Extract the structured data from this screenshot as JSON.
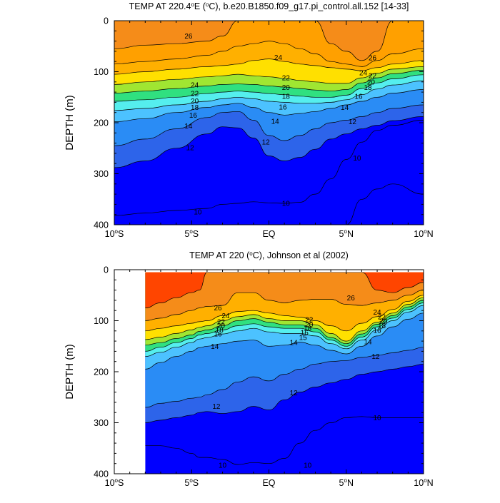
{
  "chart_data": [
    {
      "type": "heatmap",
      "title": "TEMP AT 220.4°E (°C), b.e20.B1850.f09_g17.pi_control.all.152 [14-33]",
      "xlabel": "",
      "ylabel": "DEPTH (m)",
      "xlim": [
        -10,
        10
      ],
      "ylim": [
        400,
        0
      ],
      "x_ticks": [
        -10,
        -5,
        0,
        5,
        10
      ],
      "x_tick_labels": [
        "10°S",
        "5°S",
        "EQ",
        "5°N",
        "10°N"
      ],
      "y_ticks": [
        0,
        100,
        200,
        300,
        400
      ],
      "y_tick_labels": [
        "0",
        "100",
        "200",
        "300",
        "400"
      ],
      "data_lon_range": [
        -10,
        10
      ],
      "contour_interval": 1,
      "contour_label_values": [
        {
          "text": "26",
          "x": -5.2,
          "y": 30
        },
        {
          "text": "26",
          "x": 6.7,
          "y": 73
        },
        {
          "text": "24",
          "x": 0.6,
          "y": 72
        },
        {
          "text": "24",
          "x": 6.1,
          "y": 102
        },
        {
          "text": "24",
          "x": -4.8,
          "y": 126
        },
        {
          "text": "22",
          "x": 1.1,
          "y": 112
        },
        {
          "text": "22",
          "x": 6.7,
          "y": 108
        },
        {
          "text": "22",
          "x": -4.8,
          "y": 143
        },
        {
          "text": "20",
          "x": 1.1,
          "y": 131
        },
        {
          "text": "20",
          "x": 6.6,
          "y": 120
        },
        {
          "text": "20",
          "x": -4.8,
          "y": 157
        },
        {
          "text": "18",
          "x": 1.1,
          "y": 148
        },
        {
          "text": "18",
          "x": 6.4,
          "y": 131
        },
        {
          "text": "18",
          "x": -4.8,
          "y": 170
        },
        {
          "text": "16",
          "x": 0.9,
          "y": 169
        },
        {
          "text": "16",
          "x": 5.8,
          "y": 148
        },
        {
          "text": "16",
          "x": -4.9,
          "y": 185
        },
        {
          "text": "14",
          "x": 0.4,
          "y": 197
        },
        {
          "text": "14",
          "x": 4.9,
          "y": 170
        },
        {
          "text": "14",
          "x": -5.2,
          "y": 206
        },
        {
          "text": "12",
          "x": -0.2,
          "y": 238
        },
        {
          "text": "12",
          "x": 5.4,
          "y": 198
        },
        {
          "text": "12",
          "x": -5.1,
          "y": 249
        },
        {
          "text": "10",
          "x": -4.6,
          "y": 375
        },
        {
          "text": "10",
          "x": 1.1,
          "y": 358
        },
        {
          "text": "10",
          "x": 5.7,
          "y": 269
        }
      ],
      "field_description": {
        "levels": [
          10,
          11,
          12,
          13,
          14,
          15,
          16,
          17,
          18,
          19,
          20,
          21,
          22,
          23,
          24,
          25,
          26,
          27
        ],
        "isotherm_depths_m": {
          "x": [
            -10,
            -8,
            -6,
            -4,
            -3,
            -2,
            -1,
            0,
            1,
            2,
            3,
            4,
            5,
            6,
            7,
            8,
            10
          ],
          "t27": [
            null,
            null,
            null,
            null,
            null,
            null,
            null,
            null,
            null,
            null,
            null,
            null,
            0,
            0,
            0,
            0,
            0
          ],
          "t26": [
            55,
            48,
            45,
            40,
            30,
            0,
            0,
            0,
            0,
            0,
            0,
            45,
            60,
            78,
            60,
            0,
            0
          ],
          "t25": [
            85,
            80,
            75,
            68,
            60,
            50,
            45,
            40,
            45,
            55,
            65,
            80,
            85,
            90,
            78,
            65,
            55
          ],
          "t24": [
            105,
            100,
            95,
            90,
            88,
            85,
            78,
            75,
            80,
            85,
            88,
            92,
            95,
            98,
            92,
            85,
            78
          ],
          "t22": [
            125,
            120,
            115,
            110,
            108,
            105,
            108,
            110,
            113,
            117,
            120,
            123,
            123,
            112,
            103,
            95,
            90
          ],
          "t20": [
            142,
            138,
            133,
            128,
            125,
            124,
            125,
            128,
            130,
            133,
            136,
            138,
            135,
            122,
            112,
            104,
            97
          ],
          "t18": [
            158,
            155,
            150,
            143,
            140,
            138,
            140,
            143,
            145,
            148,
            150,
            150,
            146,
            133,
            122,
            114,
            106
          ],
          "t16": [
            176,
            172,
            165,
            158,
            153,
            150,
            153,
            158,
            160,
            162,
            162,
            160,
            155,
            145,
            134,
            126,
            118
          ],
          "t14": [
            198,
            192,
            180,
            170,
            165,
            162,
            170,
            180,
            185,
            182,
            178,
            172,
            165,
            158,
            150,
            142,
            135
          ],
          "t12": [
            245,
            232,
            212,
            190,
            180,
            178,
            195,
            225,
            235,
            225,
            212,
            200,
            195,
            188,
            180,
            172,
            165
          ],
          "t11": [
            288,
            275,
            250,
            222,
            208,
            210,
            230,
            265,
            275,
            268,
            252,
            232,
            222,
            212,
            205,
            196,
            188
          ],
          "t10": [
            382,
            377,
            372,
            368,
            360,
            358,
            355,
            357,
            358,
            356,
            340,
            310,
            272,
            238,
            215,
            205,
            195
          ],
          "t9": [
            null,
            null,
            null,
            null,
            null,
            null,
            null,
            null,
            null,
            null,
            null,
            null,
            400,
            350,
            330,
            320,
            340
          ]
        }
      },
      "colormap": [
        "#0000ff",
        "#2d64ea",
        "#2a8cf5",
        "#33aaff",
        "#4cc2ff",
        "#4cdcff",
        "#55eeee",
        "#4cf0c8",
        "#30e080",
        "#00dc32",
        "#a0e632",
        "#e6f000",
        "#ffe000",
        "#ffc800",
        "#ffb000",
        "#ffa000",
        "#f58c19",
        "#ff4500"
      ]
    },
    {
      "type": "heatmap",
      "title": "TEMP AT 220 (°C), Johnson et al (2002)",
      "xlabel": "",
      "ylabel": "DEPTH (m)",
      "xlim": [
        -10,
        10
      ],
      "ylim": [
        400,
        0
      ],
      "x_ticks": [
        -10,
        -5,
        0,
        5,
        10
      ],
      "x_tick_labels": [
        "10°S",
        "5°S",
        "EQ",
        "5°N",
        "10°N"
      ],
      "y_ticks": [
        0,
        100,
        200,
        300,
        400
      ],
      "y_tick_labels": [
        "0",
        "100",
        "200",
        "300",
        "400"
      ],
      "data_lon_range": [
        -8,
        10
      ],
      "data_depth_top_m": 5,
      "contour_interval": 1,
      "contour_label_values": [
        {
          "text": "26",
          "x": -3.3,
          "y": 75
        },
        {
          "text": "26",
          "x": 5.3,
          "y": 55
        },
        {
          "text": "24",
          "x": -2.8,
          "y": 90
        },
        {
          "text": "24",
          "x": 7.0,
          "y": 83
        },
        {
          "text": "22",
          "x": 2.6,
          "y": 98
        },
        {
          "text": "22",
          "x": -3.1,
          "y": 102
        },
        {
          "text": "22",
          "x": 7.3,
          "y": 92
        },
        {
          "text": "20",
          "x": 2.6,
          "y": 108
        },
        {
          "text": "20",
          "x": -3.1,
          "y": 110
        },
        {
          "text": "20",
          "x": 7.4,
          "y": 101
        },
        {
          "text": "18",
          "x": 2.5,
          "y": 115
        },
        {
          "text": "18",
          "x": -3.2,
          "y": 118
        },
        {
          "text": "18",
          "x": 7.3,
          "y": 110
        },
        {
          "text": "16",
          "x": 2.3,
          "y": 123
        },
        {
          "text": "16",
          "x": -3.3,
          "y": 126
        },
        {
          "text": "16",
          "x": 7.0,
          "y": 119
        },
        {
          "text": "15",
          "x": 2.2,
          "y": 133
        },
        {
          "text": "14",
          "x": -3.5,
          "y": 150
        },
        {
          "text": "14",
          "x": 1.6,
          "y": 143
        },
        {
          "text": "14",
          "x": 6.4,
          "y": 141
        },
        {
          "text": "12",
          "x": 6.9,
          "y": 170
        },
        {
          "text": "12",
          "x": 1.6,
          "y": 241
        },
        {
          "text": "12",
          "x": -3.4,
          "y": 268
        },
        {
          "text": "10",
          "x": 7.0,
          "y": 290
        },
        {
          "text": "10",
          "x": 2.5,
          "y": 383
        },
        {
          "text": "10",
          "x": -3.0,
          "y": 383
        }
      ],
      "field_description": {
        "levels": [
          10,
          11,
          12,
          13,
          14,
          15,
          16,
          17,
          18,
          19,
          20,
          21,
          22,
          23,
          24,
          25,
          26,
          27
        ],
        "isotherm_depths_m": {
          "x": [
            -8,
            -7,
            -6,
            -5,
            -4.5,
            -4,
            -3,
            -2,
            -1,
            0,
            1,
            2,
            3,
            4,
            5,
            6,
            7,
            8,
            9,
            10
          ],
          "t27": [
            75,
            65,
            55,
            45,
            40,
            0,
            null,
            null,
            null,
            null,
            null,
            null,
            null,
            null,
            0,
            0,
            40,
            45,
            35,
            25
          ],
          "t26": [
            100,
            95,
            88,
            80,
            75,
            72,
            70,
            45,
            45,
            60,
            65,
            60,
            58,
            58,
            68,
            70,
            65,
            60,
            50,
            40
          ],
          "t24": [
            120,
            115,
            110,
            105,
            102,
            100,
            90,
            82,
            80,
            85,
            90,
            93,
            100,
            110,
            120,
            105,
            92,
            78,
            62,
            50
          ],
          "t22": [
            137,
            132,
            125,
            118,
            113,
            110,
            100,
            92,
            88,
            96,
            100,
            100,
            108,
            125,
            140,
            120,
            103,
            85,
            68,
            55
          ],
          "t20": [
            148,
            143,
            135,
            128,
            121,
            118,
            110,
            100,
            96,
            103,
            108,
            108,
            115,
            133,
            145,
            126,
            107,
            90,
            73,
            60
          ],
          "t18": [
            160,
            152,
            143,
            135,
            128,
            125,
            118,
            110,
            106,
            112,
            115,
            115,
            122,
            138,
            150,
            132,
            112,
            95,
            78,
            65
          ],
          "t16": [
            170,
            162,
            152,
            143,
            136,
            133,
            126,
            120,
            115,
            122,
            125,
            125,
            130,
            145,
            155,
            138,
            118,
            100,
            83,
            70
          ],
          "t14": [
            195,
            182,
            170,
            160,
            153,
            150,
            145,
            140,
            138,
            150,
            148,
            142,
            148,
            158,
            165,
            150,
            130,
            112,
            97,
            85
          ],
          "t12": [
            270,
            262,
            258,
            252,
            250,
            245,
            235,
            220,
            210,
            218,
            205,
            195,
            185,
            180,
            178,
            172,
            168,
            163,
            158,
            152
          ],
          "t11": [
            300,
            295,
            290,
            285,
            280,
            278,
            282,
            278,
            268,
            275,
            255,
            240,
            230,
            222,
            215,
            205,
            200,
            195,
            190,
            185
          ],
          "t10": [
            345,
            345,
            350,
            360,
            368,
            368,
            372,
            382,
            378,
            380,
            370,
            340,
            315,
            300,
            290,
            288,
            290,
            290,
            290,
            290
          ]
        }
      },
      "colormap": [
        "#0000ff",
        "#2d64ea",
        "#2a8cf5",
        "#33aaff",
        "#4cc2ff",
        "#4cdcff",
        "#55eeee",
        "#4cf0c8",
        "#30e080",
        "#00dc32",
        "#a0e632",
        "#e6f000",
        "#ffe000",
        "#ffc800",
        "#ffb000",
        "#ffa000",
        "#f58c19",
        "#ff4500"
      ]
    }
  ]
}
